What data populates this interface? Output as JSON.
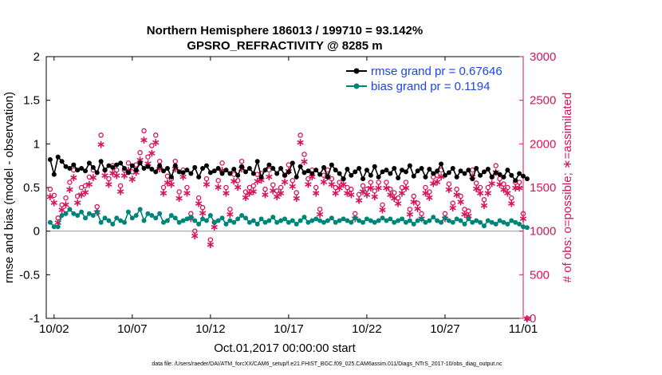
{
  "chart_data": {
    "type": "line",
    "title": "Northern Hemisphere 186013 / 199710 = 93.142%",
    "subtitle": "GPSRO_REFRACTIVITY @ 8285 m",
    "xlabel": "Oct.01,2017 00:00:00 start",
    "ylabel_left": "rmse and bias (model - observation)",
    "ylabel_right": "# of obs: o=possible; ∗=assimilated",
    "xlim": [
      1.5,
      32.0
    ],
    "ylim_left": [
      -1,
      2
    ],
    "ylim_right": [
      0,
      3000
    ],
    "x_ticks": [
      2,
      7,
      12,
      17,
      22,
      27,
      32
    ],
    "x_tick_labels": [
      "10/02",
      "10/07",
      "10/12",
      "10/17",
      "10/22",
      "10/27",
      "11/01"
    ],
    "y_ticks_left": [
      -1,
      -0.5,
      0,
      0.5,
      1,
      1.5,
      2
    ],
    "y_tick_labels_left": [
      "-1",
      "-0.5",
      "0",
      "0.5",
      "1",
      "1.5",
      "2"
    ],
    "y_ticks_right": [
      0,
      500,
      1000,
      1500,
      2000,
      2500,
      3000
    ],
    "y_tick_labels_right": [
      "0",
      "500",
      "1000",
      "1500",
      "2000",
      "2500",
      "3000"
    ],
    "legend": {
      "placement": "top-right",
      "entries": [
        "rmse grand pr = 0.67646",
        "bias grand pr = 0.1194"
      ]
    },
    "colors": {
      "rmse": "#000000",
      "bias": "#00847a",
      "obs": "#d6145a",
      "right_axis": "#d6145a",
      "legend_text": "#1a47e6",
      "zero_line": "#a0a0a0"
    },
    "series": [
      {
        "name": "rmse",
        "axis": "left",
        "x_start": 1.75,
        "x_step": 0.25,
        "values": [
          0.82,
          0.65,
          0.85,
          0.8,
          0.74,
          0.72,
          0.76,
          0.7,
          0.72,
          0.69,
          0.78,
          0.73,
          0.67,
          0.8,
          0.7,
          0.75,
          0.73,
          0.76,
          0.78,
          0.72,
          0.67,
          0.75,
          0.7,
          0.78,
          0.72,
          0.74,
          0.71,
          0.68,
          0.75,
          0.69,
          0.72,
          0.62,
          0.75,
          0.68,
          0.67,
          0.7,
          0.66,
          0.73,
          0.62,
          0.72,
          0.75,
          0.67,
          0.69,
          0.72,
          0.66,
          0.7,
          0.66,
          0.71,
          0.64,
          0.74,
          0.68,
          0.72,
          0.66,
          0.8,
          0.62,
          0.7,
          0.76,
          0.72,
          0.66,
          0.72,
          0.64,
          0.68,
          0.78,
          0.62,
          0.74,
          0.67,
          0.69,
          0.66,
          0.7,
          0.65,
          0.73,
          0.62,
          0.76,
          0.7,
          0.66,
          0.6,
          0.71,
          0.64,
          0.68,
          0.72,
          0.6,
          0.7,
          0.64,
          0.74,
          0.62,
          0.68,
          0.7,
          0.66,
          0.72,
          0.61,
          0.7,
          0.68,
          0.75,
          0.63,
          0.69,
          0.72,
          0.62,
          0.71,
          0.66,
          0.69,
          0.77,
          0.64,
          0.67,
          0.72,
          0.62,
          0.69,
          0.66,
          0.7,
          0.6,
          0.72,
          0.64,
          0.68,
          0.71,
          0.62,
          0.67,
          0.65,
          0.62,
          0.7,
          0.64,
          0.58,
          0.66,
          0.63,
          0.6
        ]
      },
      {
        "name": "bias",
        "axis": "left",
        "x_start": 1.75,
        "x_step": 0.25,
        "values": [
          0.1,
          0.05,
          0.05,
          0.18,
          0.2,
          0.25,
          0.2,
          0.18,
          0.22,
          0.15,
          0.2,
          0.18,
          0.22,
          0.1,
          0.15,
          0.12,
          0.08,
          0.15,
          0.12,
          0.1,
          0.22,
          0.15,
          0.18,
          0.25,
          0.12,
          0.2,
          0.18,
          0.15,
          0.2,
          0.1,
          0.12,
          0.18,
          0.15,
          0.1,
          0.12,
          0.14,
          0.16,
          0.12,
          0.08,
          0.14,
          0.12,
          0.18,
          0.1,
          0.12,
          0.15,
          0.08,
          0.12,
          0.1,
          0.14,
          0.18,
          0.15,
          0.1,
          0.12,
          0.08,
          0.14,
          0.1,
          0.12,
          0.16,
          0.1,
          0.12,
          0.14,
          0.1,
          0.12,
          0.08,
          0.12,
          0.16,
          0.1,
          0.12,
          0.14,
          0.12,
          0.1,
          0.12,
          0.15,
          0.1,
          0.12,
          0.14,
          0.12,
          0.1,
          0.15,
          0.12,
          0.1,
          0.14,
          0.12,
          0.1,
          0.12,
          0.15,
          0.12,
          0.14,
          0.1,
          0.12,
          0.14,
          0.1,
          0.12,
          0.08,
          0.12,
          0.14,
          0.1,
          0.12,
          0.16,
          0.12,
          0.1,
          0.15,
          0.12,
          0.1,
          0.14,
          0.12,
          0.08,
          0.14,
          0.1,
          0.12,
          0.1,
          0.06,
          0.12,
          0.1,
          0.08,
          0.12,
          0.1,
          0.08,
          0.12,
          0.1,
          0.08,
          0.05,
          0.04
        ]
      },
      {
        "name": "obs possible (o)",
        "axis": "right",
        "x_start": 1.75,
        "x_step": 0.25,
        "values": [
          1480,
          1410,
          1150,
          1300,
          1380,
          1560,
          1700,
          1400,
          1500,
          1520,
          1620,
          1700,
          1280,
          2100,
          1700,
          1600,
          1750,
          1700,
          1520,
          1700,
          1780,
          1680,
          1760,
          1900,
          2150,
          1850,
          1980,
          2100,
          1800,
          1500,
          1630,
          1600,
          1800,
          1450,
          1700,
          1500,
          1200,
          1000,
          1380,
          1270,
          1600,
          900,
          1100,
          1580,
          1780,
          1500,
          1250,
          1650,
          1580,
          1800,
          1450,
          1500,
          1520,
          1650,
          1660,
          1480,
          1700,
          1530,
          1460,
          1500,
          1640,
          1760,
          1580,
          1440,
          2100,
          1880,
          1600,
          1700,
          1500,
          1250,
          1640,
          1700,
          1600,
          1500,
          1560,
          1600,
          1500,
          1480,
          1200,
          1420,
          1520,
          1480,
          1560,
          1460,
          1560,
          1300,
          1560,
          1480,
          1440,
          1380,
          1500,
          1560,
          1250,
          1400,
          1320,
          1200,
          1500,
          1450,
          1620,
          1640,
          1700,
          1200,
          1540,
          1320,
          1480,
          1400,
          1250,
          1230,
          1700,
          1550,
          1500,
          1360,
          1500,
          1620,
          1750,
          1600,
          1540,
          1500,
          1380,
          1560,
          1560,
          1200,
          0
        ]
      },
      {
        "name": "obs assimilated (*)",
        "axis": "right",
        "x_start": 1.75,
        "x_step": 0.25,
        "values": [
          1400,
          1330,
          1100,
          1250,
          1310,
          1480,
          1620,
          1330,
          1420,
          1450,
          1540,
          1620,
          1220,
          2000,
          1640,
          1540,
          1670,
          1640,
          1460,
          1640,
          1700,
          1600,
          1680,
          1820,
          2050,
          1780,
          1900,
          2020,
          1720,
          1440,
          1560,
          1540,
          1720,
          1380,
          1630,
          1440,
          1150,
          950,
          1320,
          1210,
          1540,
          850,
          1050,
          1510,
          1700,
          1440,
          1200,
          1580,
          1510,
          1720,
          1390,
          1440,
          1460,
          1580,
          1590,
          1420,
          1630,
          1470,
          1400,
          1440,
          1570,
          1690,
          1520,
          1380,
          2020,
          1800,
          1540,
          1630,
          1440,
          1200,
          1570,
          1630,
          1540,
          1440,
          1500,
          1540,
          1440,
          1420,
          1150,
          1360,
          1460,
          1420,
          1500,
          1400,
          1500,
          1250,
          1500,
          1420,
          1380,
          1320,
          1440,
          1500,
          1200,
          1340,
          1260,
          1150,
          1440,
          1390,
          1550,
          1570,
          1630,
          1150,
          1480,
          1270,
          1420,
          1340,
          1200,
          1180,
          1630,
          1490,
          1440,
          1300,
          1440,
          1550,
          1680,
          1540,
          1480,
          1440,
          1320,
          1500,
          1500,
          1150,
          0
        ]
      }
    ],
    "footer": "data file: /Users/raeder/DAI/ATM_forcXX/CAM6_setup/f.e21.FHIST_BGC.f09_025.CAM6assim.011/Diags_NTrS_2017-10/obs_diag_output.nc"
  }
}
